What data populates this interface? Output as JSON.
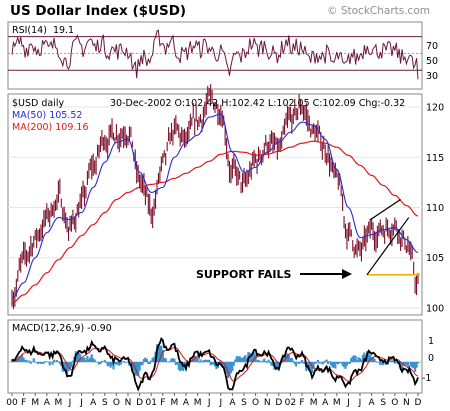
{
  "header": {
    "title": "US Dollar Index ($USD)",
    "credit": "© StockCharts.com"
  },
  "rsi_panel": {
    "label": "RSI(14)",
    "value": "19.1",
    "levels": [
      "70",
      "50",
      "30"
    ]
  },
  "price_panel": {
    "symbol_label": "$USD daily",
    "ohlc_text": "30-Dec-2002 O:102.42 H:102.42 L:102.05 C:102.09 Chg:-0.32",
    "ma50_label": "MA(50) 105.52",
    "ma200_label": "MA(200) 109.16",
    "y_ticks": [
      "120",
      "115",
      "110",
      "105",
      "100"
    ],
    "annotation": "SUPPORT FAILS"
  },
  "macd_panel": {
    "label": "MACD(12,26,9) -0.90",
    "y_ticks": [
      "1",
      "0",
      "-1"
    ]
  },
  "x_axis": {
    "months": [
      "00",
      "F",
      "M",
      "A",
      "M",
      "J",
      "J",
      "A",
      "S",
      "O",
      "N",
      "D",
      "01",
      "F",
      "M",
      "A",
      "M",
      "J",
      "J",
      "A",
      "S",
      "O",
      "N",
      "D",
      "02",
      "F",
      "M",
      "A",
      "M",
      "J",
      "J",
      "A",
      "S",
      "O",
      "N",
      "D"
    ]
  },
  "colors": {
    "price_bars": "#7a0f2a",
    "ma50": "#2a2ad6",
    "ma200": "#e01818",
    "support": "#f2b400",
    "rsi_band": "#6a1a3a",
    "macd_hist": "#3a92d0",
    "macd_line": "#000000",
    "signal_line": "#d01818"
  },
  "chart_data": {
    "type": "line",
    "title": "US Dollar Index ($USD)",
    "x_range": [
      "2000-01",
      "2002-12-30"
    ],
    "price": {
      "ylim": [
        99.5,
        121
      ],
      "x": [
        "2000-01",
        "2000-02",
        "2000-03",
        "2000-04",
        "2000-05",
        "2000-06",
        "2000-07",
        "2000-08",
        "2000-09",
        "2000-10",
        "2000-11",
        "2000-12",
        "2001-01",
        "2001-02",
        "2001-03",
        "2001-04",
        "2001-05",
        "2001-06",
        "2001-07",
        "2001-08",
        "2001-09",
        "2001-10",
        "2001-11",
        "2001-12",
        "2002-01",
        "2002-02",
        "2002-03",
        "2002-04",
        "2002-05",
        "2002-06",
        "2002-07",
        "2002-08",
        "2002-09",
        "2002-10",
        "2002-11",
        "2002-12"
      ],
      "series": [
        {
          "name": "$USD daily",
          "values": [
            101.5,
            104.5,
            107.0,
            109.0,
            111.0,
            108.0,
            110.5,
            114.0,
            117.0,
            117.5,
            118.0,
            112.5,
            109.5,
            114.0,
            117.5,
            116.5,
            118.5,
            120.5,
            120.0,
            113.5,
            112.0,
            114.5,
            116.5,
            115.5,
            118.5,
            120.0,
            117.5,
            116.0,
            112.5,
            107.5,
            105.5,
            107.5,
            108.0,
            108.5,
            106.5,
            102.1
          ]
        },
        {
          "name": "MA(50)",
          "values": [
            101.0,
            102.5,
            105.0,
            107.5,
            109.0,
            108.8,
            109.5,
            112.0,
            114.5,
            116.5,
            116.8,
            113.5,
            111.5,
            112.0,
            115.0,
            116.5,
            117.2,
            119.0,
            119.3,
            115.5,
            113.5,
            114.0,
            115.5,
            116.5,
            117.5,
            118.5,
            118.2,
            116.8,
            113.8,
            110.0,
            107.0,
            107.3,
            107.8,
            108.0,
            106.8,
            105.52
          ]
        },
        {
          "name": "MA(200)",
          "values": [
            100.5,
            101.3,
            102.3,
            103.5,
            104.8,
            106.0,
            107.2,
            108.3,
            109.5,
            110.8,
            111.5,
            112.0,
            112.3,
            112.5,
            112.9,
            113.4,
            114.0,
            114.6,
            115.3,
            115.6,
            115.5,
            115.2,
            115.3,
            115.6,
            116.0,
            116.4,
            116.6,
            116.4,
            116.0,
            115.2,
            114.2,
            113.2,
            112.2,
            111.2,
            110.2,
            109.16
          ]
        }
      ],
      "support_level": 103.3
    },
    "rsi": {
      "ylim": [
        10,
        85
      ],
      "levels": [
        70,
        50,
        30
      ],
      "last": 19.1
    },
    "macd": {
      "ylim": [
        -1.7,
        1.7
      ],
      "last": -0.9
    }
  }
}
